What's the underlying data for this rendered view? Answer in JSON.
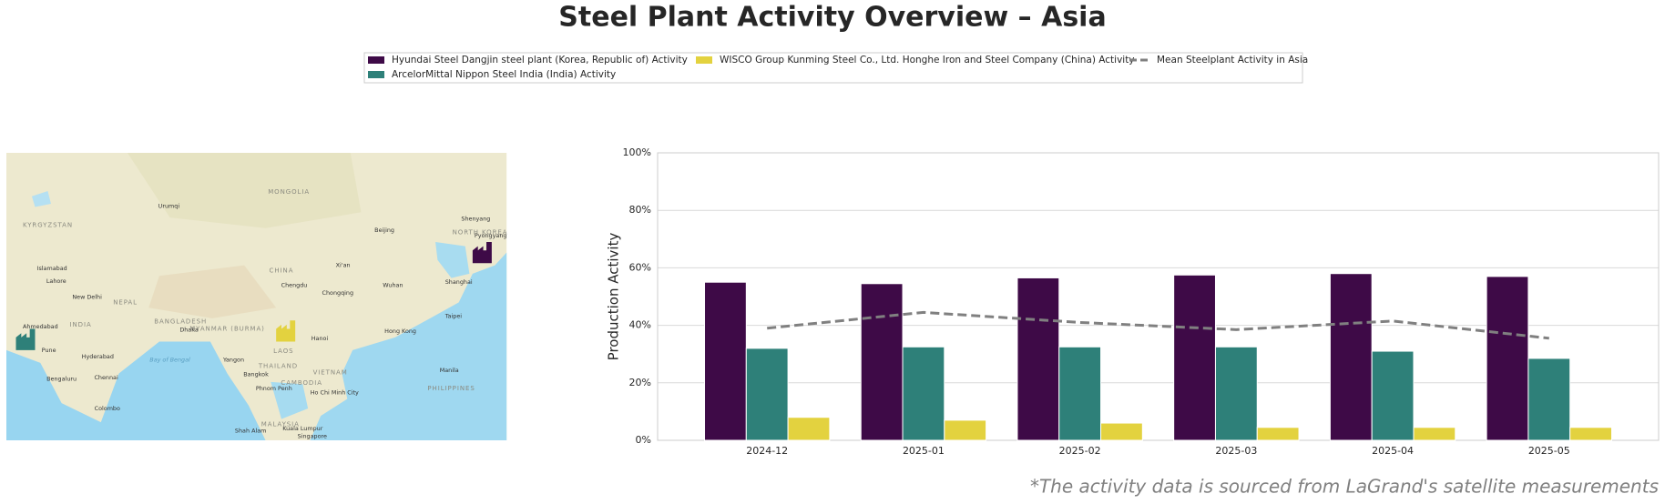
{
  "chart_data": {
    "type": "bar",
    "title": "Steel Plant Activity Overview – Asia",
    "y_label": "Production Activity",
    "footnote": "*The activity data is sourced from LaGrand's satellite measurements",
    "categories": [
      "2024-12",
      "2025-01",
      "2025-02",
      "2025-03",
      "2025-04",
      "2025-05"
    ],
    "series": [
      {
        "name": "Hyundai Steel Dangjin steel plant (Korea, Republic of) Activity",
        "color": "#3e0a47",
        "values": [
          55,
          54.5,
          56.5,
          57.5,
          58,
          57
        ]
      },
      {
        "name": "ArcelorMittal Nippon Steel India (India) Activity",
        "color": "#2e8079",
        "values": [
          32,
          32.5,
          32.5,
          32.5,
          31,
          28.5
        ]
      },
      {
        "name": "WISCO Group Kunming Steel Co., Ltd. Honghe Iron and Steel Company (China) Activity",
        "color": "#e3d23f",
        "values": [
          8,
          7,
          6,
          4.5,
          4.5,
          4.5
        ]
      }
    ],
    "mean_line": {
      "name": "Mean Steelplant Activity in Asia",
      "color": "#808080",
      "style": "dashed",
      "values": [
        39,
        44.5,
        41,
        38.5,
        41.5,
        35.5
      ]
    },
    "ylim": [
      0,
      100
    ],
    "yticks": [
      {
        "value": 0,
        "label": "0%"
      },
      {
        "value": 20,
        "label": "20%"
      },
      {
        "value": 40,
        "label": "40%"
      },
      {
        "value": 60,
        "label": "60%"
      },
      {
        "value": 80,
        "label": "80%"
      },
      {
        "value": 100,
        "label": "100%"
      }
    ],
    "grid": true
  },
  "map": {
    "labels": [
      "MONGOLIA",
      "CHINA",
      "Beijing",
      "Shenyang",
      "Urumqi",
      "Xi'an",
      "Chengdu",
      "Chongqing",
      "Wuhan",
      "Shanghai",
      "Taipei",
      "Hong Kong",
      "Hanoi",
      "LAOS",
      "THAILAND",
      "Bangkok",
      "VIETNAM",
      "CAMBODIA",
      "Phnom Penh",
      "Ho Chi Minh City",
      "PHILIPPINES",
      "Manila",
      "MYANMAR (BURMA)",
      "Yangon",
      "BANGLADESH",
      "Dhaka",
      "NEPAL",
      "New Delhi",
      "Lahore",
      "Islamabad",
      "INDIA",
      "Ahmedabad",
      "Pune",
      "Hyderabad",
      "Bengaluru",
      "Chennai",
      "Colombo",
      "Bay of Bengal",
      "MALAYSIA",
      "Kuala Lumpur",
      "Singapore",
      "Shah Alam",
      "KYRGYZSTAN",
      "NORTH KOREA",
      "Pyongyang"
    ]
  }
}
